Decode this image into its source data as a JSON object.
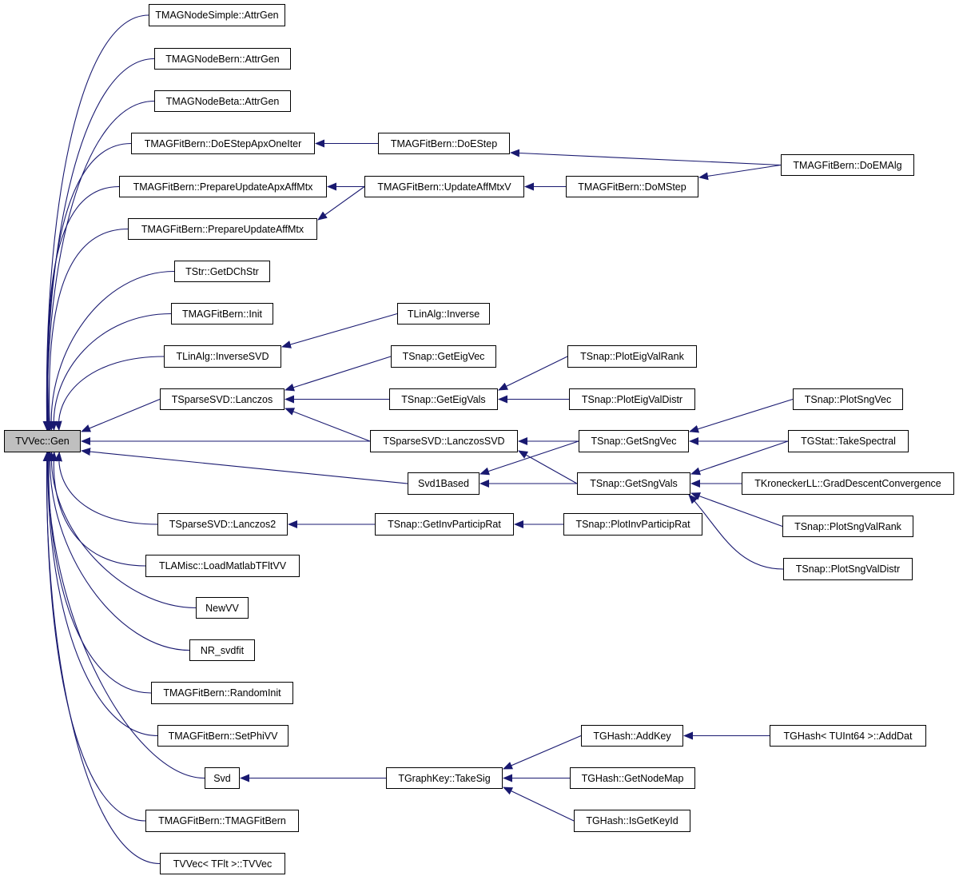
{
  "graph": {
    "root": "gen",
    "edge_color": "#191970",
    "root_fill": "#bfbfbf",
    "nodes": [
      {
        "id": "gen",
        "label": "TVVec::Gen"
      },
      {
        "id": "simple",
        "label": "TMAGNodeSimple::AttrGen"
      },
      {
        "id": "bern",
        "label": "TMAGNodeBern::AttrGen"
      },
      {
        "id": "beta",
        "label": "TMAGNodeBeta::AttrGen"
      },
      {
        "id": "doestepapx",
        "label": "TMAGFitBern::DoEStepApxOneIter"
      },
      {
        "id": "prepapx",
        "label": "TMAGFitBern::PrepareUpdateApxAffMtx"
      },
      {
        "id": "prep",
        "label": "TMAGFitBern::PrepareUpdateAffMtx"
      },
      {
        "id": "getdch",
        "label": "TStr::GetDChStr"
      },
      {
        "id": "init",
        "label": "TMAGFitBern::Init"
      },
      {
        "id": "invsvd",
        "label": "TLinAlg::InverseSVD"
      },
      {
        "id": "lanczos",
        "label": "TSparseSVD::Lanczos"
      },
      {
        "id": "lanczos2",
        "label": "TSparseSVD::Lanczos2"
      },
      {
        "id": "loadmat",
        "label": "TLAMisc::LoadMatlabTFltVV"
      },
      {
        "id": "newvv",
        "label": "NewVV"
      },
      {
        "id": "nrsvd",
        "label": "NR_svdfit"
      },
      {
        "id": "randinit",
        "label": "TMAGFitBern::RandomInit"
      },
      {
        "id": "setphi",
        "label": "TMAGFitBern::SetPhiVV"
      },
      {
        "id": "svd",
        "label": "Svd"
      },
      {
        "id": "ctor",
        "label": "TMAGFitBern::TMAGFitBern"
      },
      {
        "id": "tvvec",
        "label": "TVVec< TFlt >::TVVec"
      },
      {
        "id": "doestep",
        "label": "TMAGFitBern::DoEStep"
      },
      {
        "id": "updaff",
        "label": "TMAGFitBern::UpdateAffMtxV"
      },
      {
        "id": "inverse",
        "label": "TLinAlg::Inverse"
      },
      {
        "id": "geteigvec",
        "label": "TSnap::GetEigVec"
      },
      {
        "id": "geteigvals",
        "label": "TSnap::GetEigVals"
      },
      {
        "id": "lanczossvd",
        "label": "TSparseSVD::LanczosSVD"
      },
      {
        "id": "svd1",
        "label": "Svd1Based"
      },
      {
        "id": "getinv",
        "label": "TSnap::GetInvParticipRat"
      },
      {
        "id": "takesig",
        "label": "TGraphKey::TakeSig"
      },
      {
        "id": "domstep",
        "label": "TMAGFitBern::DoMStep"
      },
      {
        "id": "ploteigrank",
        "label": "TSnap::PlotEigValRank"
      },
      {
        "id": "ploteigdistr",
        "label": "TSnap::PlotEigValDistr"
      },
      {
        "id": "getsngvec",
        "label": "TSnap::GetSngVec"
      },
      {
        "id": "getsngvals",
        "label": "TSnap::GetSngVals"
      },
      {
        "id": "plotinv",
        "label": "TSnap::PlotInvParticipRat"
      },
      {
        "id": "addkey",
        "label": "TGHash::AddKey"
      },
      {
        "id": "getnodemap",
        "label": "TGHash::GetNodeMap"
      },
      {
        "id": "isgetkey",
        "label": "TGHash::IsGetKeyId"
      },
      {
        "id": "doemalg",
        "label": "TMAGFitBern::DoEMAlg"
      },
      {
        "id": "plotsngvec",
        "label": "TSnap::PlotSngVec"
      },
      {
        "id": "takespectral",
        "label": "TGStat::TakeSpectral"
      },
      {
        "id": "graddesc",
        "label": "TKroneckerLL::GradDescentConvergence"
      },
      {
        "id": "plotsngrank",
        "label": "TSnap::PlotSngValRank"
      },
      {
        "id": "plotsngdistr",
        "label": "TSnap::PlotSngValDistr"
      },
      {
        "id": "adddat",
        "label": "TGHash< TUInt64 >::AddDat"
      }
    ],
    "edges": [
      [
        "simple",
        "gen"
      ],
      [
        "bern",
        "gen"
      ],
      [
        "beta",
        "gen"
      ],
      [
        "doestepapx",
        "gen"
      ],
      [
        "prepapx",
        "gen"
      ],
      [
        "prep",
        "gen"
      ],
      [
        "getdch",
        "gen"
      ],
      [
        "init",
        "gen"
      ],
      [
        "invsvd",
        "gen"
      ],
      [
        "lanczos",
        "gen"
      ],
      [
        "lanczossvd",
        "gen"
      ],
      [
        "svd1",
        "gen"
      ],
      [
        "lanczos2",
        "gen"
      ],
      [
        "loadmat",
        "gen"
      ],
      [
        "newvv",
        "gen"
      ],
      [
        "nrsvd",
        "gen"
      ],
      [
        "randinit",
        "gen"
      ],
      [
        "setphi",
        "gen"
      ],
      [
        "svd",
        "gen"
      ],
      [
        "ctor",
        "gen"
      ],
      [
        "tvvec",
        "gen"
      ],
      [
        "doestep",
        "doestepapx"
      ],
      [
        "updaff",
        "prepapx"
      ],
      [
        "updaff",
        "prep"
      ],
      [
        "inverse",
        "invsvd"
      ],
      [
        "geteigvec",
        "lanczos"
      ],
      [
        "geteigvals",
        "lanczos"
      ],
      [
        "lanczossvd",
        "lanczos"
      ],
      [
        "getinv",
        "lanczos2"
      ],
      [
        "takesig",
        "svd"
      ],
      [
        "domstep",
        "updaff"
      ],
      [
        "ploteigrank",
        "geteigvals"
      ],
      [
        "ploteigdistr",
        "geteigvals"
      ],
      [
        "getsngvec",
        "lanczossvd"
      ],
      [
        "getsngvec",
        "svd1"
      ],
      [
        "getsngvals",
        "lanczossvd"
      ],
      [
        "getsngvals",
        "svd1"
      ],
      [
        "plotinv",
        "getinv"
      ],
      [
        "addkey",
        "takesig"
      ],
      [
        "getnodemap",
        "takesig"
      ],
      [
        "isgetkey",
        "takesig"
      ],
      [
        "doemalg",
        "doestep"
      ],
      [
        "doemalg",
        "domstep"
      ],
      [
        "plotsngvec",
        "getsngvec"
      ],
      [
        "takespectral",
        "getsngvec"
      ],
      [
        "takespectral",
        "getsngvals"
      ],
      [
        "graddesc",
        "getsngvals"
      ],
      [
        "plotsngrank",
        "getsngvals"
      ],
      [
        "plotsngdistr",
        "getsngvals"
      ],
      [
        "adddat",
        "addkey"
      ]
    ]
  }
}
